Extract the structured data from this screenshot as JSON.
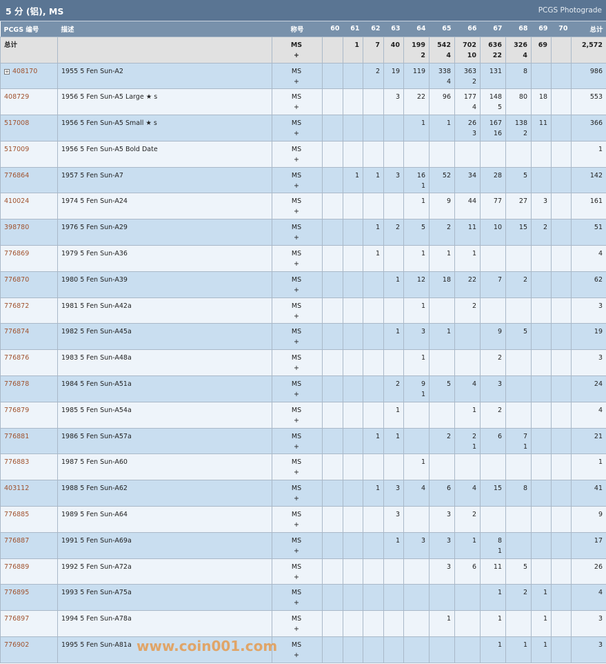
{
  "title": "5 分 (铝), MS",
  "brand": "PCGS Photograde",
  "headers": {
    "pcgs": "PCGS 编号",
    "desc": "描述",
    "designation": "称号",
    "grades": [
      "60",
      "61",
      "62",
      "63",
      "64",
      "65",
      "66",
      "67",
      "68",
      "69",
      "70"
    ],
    "total": "总计"
  },
  "total_row": {
    "label": "总计",
    "designation": "MS",
    "plus": "+",
    "counts": [
      "",
      "1",
      "7",
      "40",
      "199",
      "542",
      "702",
      "636",
      "326",
      "69",
      ""
    ],
    "plus_counts": [
      "",
      "",
      "",
      "",
      "2",
      "4",
      "10",
      "22",
      "4",
      "",
      ""
    ],
    "total": "2,572"
  },
  "rows": [
    {
      "pcgs": "408170",
      "expand": "+",
      "desc": "1955 5 Fen Sun-A2",
      "designation": "MS",
      "plus": "+",
      "counts": [
        "",
        "",
        "2",
        "19",
        "119",
        "338",
        "363",
        "131",
        "8",
        "",
        ""
      ],
      "plus_counts": [
        "",
        "",
        "",
        "",
        "",
        "4",
        "2",
        "",
        "",
        "",
        ""
      ],
      "total": "986"
    },
    {
      "pcgs": "408729",
      "desc": "1956 5 Fen Sun-A5 Large ★ s",
      "designation": "MS",
      "plus": "+",
      "counts": [
        "",
        "",
        "",
        "3",
        "22",
        "96",
        "177",
        "148",
        "80",
        "18",
        ""
      ],
      "plus_counts": [
        "",
        "",
        "",
        "",
        "",
        "",
        "4",
        "5",
        "",
        "",
        ""
      ],
      "total": "553"
    },
    {
      "pcgs": "517008",
      "desc": "1956 5 Fen Sun-A5 Small ★ s",
      "designation": "MS",
      "plus": "+",
      "counts": [
        "",
        "",
        "",
        "",
        "1",
        "1",
        "26",
        "167",
        "138",
        "11",
        ""
      ],
      "plus_counts": [
        "",
        "",
        "",
        "",
        "",
        "",
        "3",
        "16",
        "2",
        "",
        ""
      ],
      "total": "366"
    },
    {
      "pcgs": "517009",
      "desc": "1956 5 Fen Sun-A5 Bold Date",
      "designation": "MS",
      "plus": "+",
      "counts": [
        "",
        "",
        "",
        "",
        "",
        "",
        "",
        "",
        "",
        "",
        ""
      ],
      "plus_counts": [
        "",
        "",
        "",
        "",
        "",
        "",
        "",
        "",
        "",
        "",
        ""
      ],
      "total": "1"
    },
    {
      "pcgs": "776864",
      "desc": "1957 5 Fen Sun-A7",
      "designation": "MS",
      "plus": "+",
      "counts": [
        "",
        "1",
        "1",
        "3",
        "16",
        "52",
        "34",
        "28",
        "5",
        "",
        ""
      ],
      "plus_counts": [
        "",
        "",
        "",
        "",
        "1",
        "",
        "",
        "",
        "",
        "",
        ""
      ],
      "total": "142"
    },
    {
      "pcgs": "410024",
      "desc": "1974 5 Fen Sun-A24",
      "designation": "MS",
      "plus": "+",
      "counts": [
        "",
        "",
        "",
        "",
        "1",
        "9",
        "44",
        "77",
        "27",
        "3",
        ""
      ],
      "plus_counts": [
        "",
        "",
        "",
        "",
        "",
        "",
        "",
        "",
        "",
        "",
        ""
      ],
      "total": "161"
    },
    {
      "pcgs": "398780",
      "desc": "1976 5 Fen Sun-A29",
      "designation": "MS",
      "plus": "+",
      "counts": [
        "",
        "",
        "1",
        "2",
        "5",
        "2",
        "11",
        "10",
        "15",
        "2",
        ""
      ],
      "plus_counts": [
        "",
        "",
        "",
        "",
        "",
        "",
        "",
        "",
        "",
        "",
        ""
      ],
      "total": "51"
    },
    {
      "pcgs": "776869",
      "desc": "1979 5 Fen Sun-A36",
      "designation": "MS",
      "plus": "+",
      "counts": [
        "",
        "",
        "1",
        "",
        "1",
        "1",
        "1",
        "",
        "",
        "",
        ""
      ],
      "plus_counts": [
        "",
        "",
        "",
        "",
        "",
        "",
        "",
        "",
        "",
        "",
        ""
      ],
      "total": "4"
    },
    {
      "pcgs": "776870",
      "desc": "1980 5 Fen Sun-A39",
      "designation": "MS",
      "plus": "+",
      "counts": [
        "",
        "",
        "",
        "1",
        "12",
        "18",
        "22",
        "7",
        "2",
        "",
        ""
      ],
      "plus_counts": [
        "",
        "",
        "",
        "",
        "",
        "",
        "",
        "",
        "",
        "",
        ""
      ],
      "total": "62"
    },
    {
      "pcgs": "776872",
      "desc": "1981 5 Fen Sun-A42a",
      "designation": "MS",
      "plus": "+",
      "counts": [
        "",
        "",
        "",
        "",
        "1",
        "",
        "2",
        "",
        "",
        "",
        ""
      ],
      "plus_counts": [
        "",
        "",
        "",
        "",
        "",
        "",
        "",
        "",
        "",
        "",
        ""
      ],
      "total": "3"
    },
    {
      "pcgs": "776874",
      "desc": "1982 5 Fen Sun-A45a",
      "designation": "MS",
      "plus": "+",
      "counts": [
        "",
        "",
        "",
        "1",
        "3",
        "1",
        "",
        "9",
        "5",
        "",
        ""
      ],
      "plus_counts": [
        "",
        "",
        "",
        "",
        "",
        "",
        "",
        "",
        "",
        "",
        ""
      ],
      "total": "19"
    },
    {
      "pcgs": "776876",
      "desc": "1983 5 Fen Sun-A48a",
      "designation": "MS",
      "plus": "+",
      "counts": [
        "",
        "",
        "",
        "",
        "1",
        "",
        "",
        "2",
        "",
        "",
        ""
      ],
      "plus_counts": [
        "",
        "",
        "",
        "",
        "",
        "",
        "",
        "",
        "",
        "",
        ""
      ],
      "total": "3"
    },
    {
      "pcgs": "776878",
      "desc": "1984 5 Fen Sun-A51a",
      "designation": "MS",
      "plus": "+",
      "counts": [
        "",
        "",
        "",
        "2",
        "9",
        "5",
        "4",
        "3",
        "",
        "",
        ""
      ],
      "plus_counts": [
        "",
        "",
        "",
        "",
        "1",
        "",
        "",
        "",
        "",
        "",
        ""
      ],
      "total": "24"
    },
    {
      "pcgs": "776879",
      "desc": "1985 5 Fen Sun-A54a",
      "designation": "MS",
      "plus": "+",
      "counts": [
        "",
        "",
        "",
        "1",
        "",
        "",
        "1",
        "2",
        "",
        "",
        ""
      ],
      "plus_counts": [
        "",
        "",
        "",
        "",
        "",
        "",
        "",
        "",
        "",
        "",
        ""
      ],
      "total": "4"
    },
    {
      "pcgs": "776881",
      "desc": "1986 5 Fen Sun-A57a",
      "designation": "MS",
      "plus": "+",
      "counts": [
        "",
        "",
        "1",
        "1",
        "",
        "2",
        "2",
        "6",
        "7",
        "",
        ""
      ],
      "plus_counts": [
        "",
        "",
        "",
        "",
        "",
        "",
        "1",
        "",
        "1",
        "",
        ""
      ],
      "total": "21"
    },
    {
      "pcgs": "776883",
      "desc": "1987 5 Fen Sun-A60",
      "designation": "MS",
      "plus": "+",
      "counts": [
        "",
        "",
        "",
        "",
        "1",
        "",
        "",
        "",
        "",
        "",
        ""
      ],
      "plus_counts": [
        "",
        "",
        "",
        "",
        "",
        "",
        "",
        "",
        "",
        "",
        ""
      ],
      "total": "1"
    },
    {
      "pcgs": "403112",
      "desc": "1988 5 Fen Sun-A62",
      "designation": "MS",
      "plus": "+",
      "counts": [
        "",
        "",
        "1",
        "3",
        "4",
        "6",
        "4",
        "15",
        "8",
        "",
        ""
      ],
      "plus_counts": [
        "",
        "",
        "",
        "",
        "",
        "",
        "",
        "",
        "",
        "",
        ""
      ],
      "total": "41"
    },
    {
      "pcgs": "776885",
      "desc": "1989 5 Fen Sun-A64",
      "designation": "MS",
      "plus": "+",
      "counts": [
        "",
        "",
        "",
        "3",
        "",
        "3",
        "2",
        "",
        "",
        "",
        ""
      ],
      "plus_counts": [
        "",
        "",
        "",
        "",
        "",
        "",
        "",
        "",
        "",
        "",
        ""
      ],
      "total": "9"
    },
    {
      "pcgs": "776887",
      "desc": "1991 5 Fen Sun-A69a",
      "designation": "MS",
      "plus": "+",
      "counts": [
        "",
        "",
        "",
        "1",
        "3",
        "3",
        "1",
        "8",
        "",
        "",
        ""
      ],
      "plus_counts": [
        "",
        "",
        "",
        "",
        "",
        "",
        "",
        "1",
        "",
        "",
        ""
      ],
      "total": "17"
    },
    {
      "pcgs": "776889",
      "desc": "1992 5 Fen Sun-A72a",
      "designation": "MS",
      "plus": "+",
      "counts": [
        "",
        "",
        "",
        "",
        "",
        "3",
        "6",
        "11",
        "5",
        "",
        ""
      ],
      "plus_counts": [
        "",
        "",
        "",
        "",
        "",
        "",
        "",
        "",
        "",
        "",
        ""
      ],
      "total": "26"
    },
    {
      "pcgs": "776895",
      "desc": "1993 5 Fen Sun-A75a",
      "designation": "MS",
      "plus": "+",
      "counts": [
        "",
        "",
        "",
        "",
        "",
        "",
        "",
        "1",
        "2",
        "1",
        ""
      ],
      "plus_counts": [
        "",
        "",
        "",
        "",
        "",
        "",
        "",
        "",
        "",
        "",
        ""
      ],
      "total": "4"
    },
    {
      "pcgs": "776897",
      "desc": "1994 5 Fen Sun-A78a",
      "designation": "MS",
      "plus": "+",
      "counts": [
        "",
        "",
        "",
        "",
        "",
        "1",
        "",
        "1",
        "",
        "1",
        ""
      ],
      "plus_counts": [
        "",
        "",
        "",
        "",
        "",
        "",
        "",
        "",
        "",
        "",
        ""
      ],
      "total": "3"
    },
    {
      "pcgs": "776902",
      "desc": "1995 5 Fen Sun-A81a",
      "designation": "MS",
      "plus": "+",
      "counts": [
        "",
        "",
        "",
        "",
        "",
        "",
        "",
        "1",
        "1",
        "1",
        ""
      ],
      "plus_counts": [
        "",
        "",
        "",
        "",
        "",
        "",
        "",
        "",
        "",
        "",
        ""
      ],
      "total": "3"
    }
  ],
  "watermark": "www.coin001.com",
  "colors": {
    "title_bar": "#5a7593",
    "header": "#7891ab",
    "row_odd": "#c9def0",
    "row_even": "#eef4fa",
    "total_row": "#e1e1e1",
    "link": "#a0522d"
  }
}
